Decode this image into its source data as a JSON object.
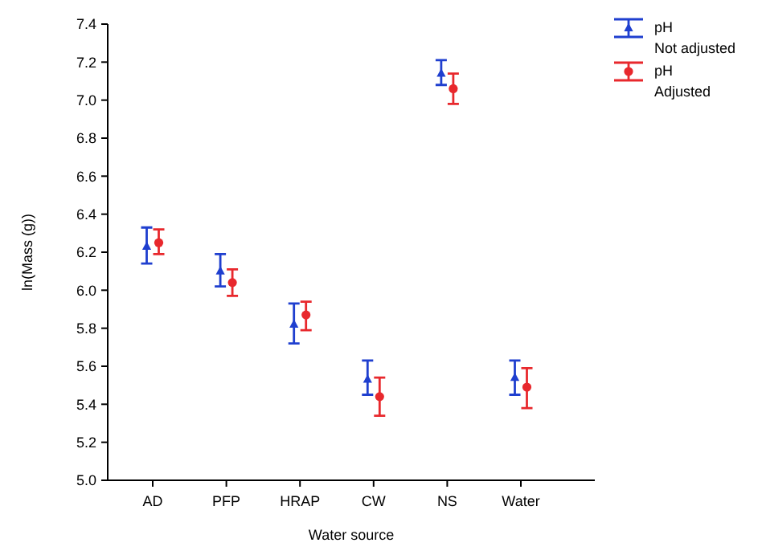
{
  "chart_data": {
    "type": "scatter",
    "xlabel": "Water source",
    "ylabel": "ln(Mass (g))",
    "categories": [
      "AD",
      "PFP",
      "HRAP",
      "CW",
      "NS",
      "Water"
    ],
    "ylim": [
      5.0,
      7.4
    ],
    "yticks": [
      {
        "value": 5.0,
        "label": "5.0"
      },
      {
        "value": 5.2,
        "label": "5.2"
      },
      {
        "value": 5.4,
        "label": "5.4"
      },
      {
        "value": 5.6,
        "label": "5.6"
      },
      {
        "value": 5.8,
        "label": "5.8"
      },
      {
        "value": 6.0,
        "label": "6.0"
      },
      {
        "value": 6.2,
        "label": "6.2"
      },
      {
        "value": 6.4,
        "label": "6.4"
      },
      {
        "value": 6.6,
        "label": "6.6"
      },
      {
        "value": 6.8,
        "label": "6.8"
      },
      {
        "value": 7.0,
        "label": "7.0"
      },
      {
        "value": 7.2,
        "label": "7.2"
      },
      {
        "value": 7.4,
        "label": "7.4"
      }
    ],
    "legend": "top right",
    "grid": false,
    "series": [
      {
        "name": "pH\nNot adjusted",
        "color": "#1f3fcf",
        "marker": "triangle",
        "values": [
          6.23,
          6.1,
          5.82,
          5.53,
          7.14,
          5.54
        ],
        "errors": [
          [
            6.14,
            6.33
          ],
          [
            6.02,
            6.19
          ],
          [
            5.72,
            5.93
          ],
          [
            5.45,
            5.63
          ],
          [
            7.08,
            7.21
          ],
          [
            5.45,
            5.63
          ]
        ]
      },
      {
        "name": "pH\nAdjusted",
        "color": "#e8282d",
        "marker": "circle",
        "values": [
          6.25,
          6.04,
          5.87,
          5.44,
          7.06,
          5.49
        ],
        "errors": [
          [
            6.19,
            6.32
          ],
          [
            5.97,
            6.11
          ],
          [
            5.79,
            5.94
          ],
          [
            5.34,
            5.54
          ],
          [
            6.98,
            7.14
          ],
          [
            5.38,
            5.59
          ]
        ]
      }
    ]
  }
}
